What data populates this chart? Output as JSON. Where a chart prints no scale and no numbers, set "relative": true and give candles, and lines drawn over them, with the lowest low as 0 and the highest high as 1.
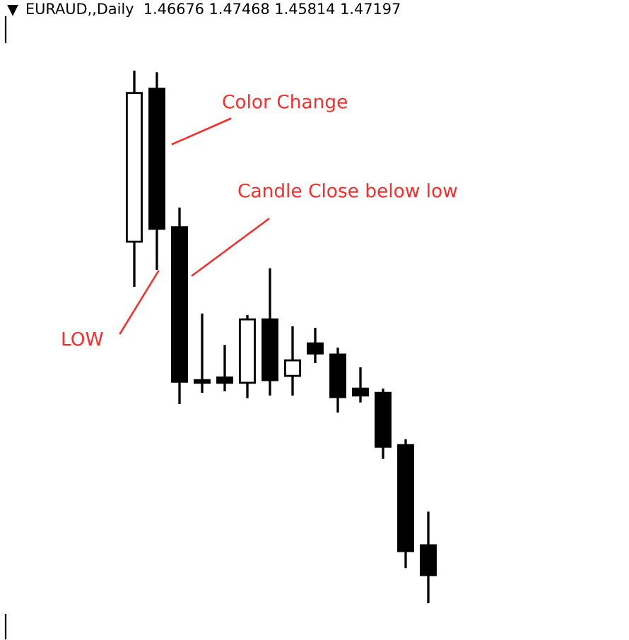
{
  "chart_data": {
    "type": "candlestick",
    "title": "EURAUD,,Daily  1.46676 1.47468 1.45814 1.47197",
    "relative": true,
    "categories": [
      null,
      null,
      null,
      null,
      null,
      null,
      null,
      null,
      null,
      null,
      null,
      null,
      null,
      null
    ],
    "ohlc": [
      [
        0.679,
        1.0,
        0.594,
        0.958
      ],
      [
        0.966,
        0.997,
        0.626,
        0.703
      ],
      [
        0.706,
        0.743,
        0.374,
        0.416
      ],
      [
        0.419,
        0.544,
        0.395,
        0.414
      ],
      [
        0.424,
        0.485,
        0.398,
        0.414
      ],
      [
        0.414,
        0.541,
        0.385,
        0.533
      ],
      [
        0.533,
        0.629,
        0.39,
        0.419
      ],
      [
        0.427,
        0.52,
        0.39,
        0.456
      ],
      [
        0.488,
        0.517,
        0.451,
        0.469
      ],
      [
        0.467,
        0.48,
        0.358,
        0.387
      ],
      [
        0.403,
        0.443,
        0.377,
        0.39
      ],
      [
        0.395,
        0.403,
        0.271,
        0.294
      ],
      [
        0.297,
        0.308,
        0.066,
        0.098
      ],
      [
        0.109,
        0.172,
        0.0,
        0.053
      ]
    ],
    "annotations": [
      "Color Change",
      "Candle Close below low",
      "LOW"
    ]
  }
}
